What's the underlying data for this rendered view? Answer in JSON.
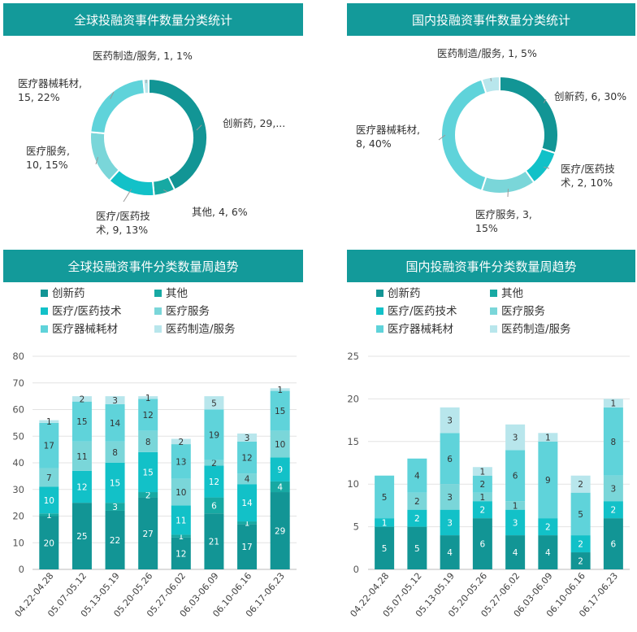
{
  "headers": {
    "global_donut": "全球投融资事件数量分类统计",
    "domestic_donut": "国内投融资事件数量分类统计",
    "global_weekly": "全球投融资事件分类数量周趋势",
    "domestic_weekly": "国内投融资事件分类数量周趋势"
  },
  "categories": [
    "创新药",
    "其他",
    "医疗/医药技术",
    "医疗服务",
    "医疗器械耗材",
    "医药制造/服务"
  ],
  "legend_labels": [
    "创新药",
    "其他",
    "医疗/医药技术",
    "医疗服务",
    "医疗器械耗材",
    "医药制造/服务"
  ],
  "colors": [
    "#129595",
    "#17a9a3",
    "#12c1c8",
    "#7ad6d9",
    "#5fd3da",
    "#b8e6ec"
  ],
  "chart_data": [
    {
      "type": "pie",
      "id": "global_donut",
      "donut": true,
      "slices": [
        {
          "label": "创新药",
          "value": 29,
          "percent": 43
        },
        {
          "label": "其他",
          "value": 4,
          "percent": 6
        },
        {
          "label": "医疗/医药技术",
          "value": 9,
          "percent": 13
        },
        {
          "label": "医疗服务",
          "value": 10,
          "percent": 15
        },
        {
          "label": "医疗器械耗材",
          "value": 15,
          "percent": 22
        },
        {
          "label": "医药制造/服务",
          "value": 1,
          "percent": 1
        }
      ],
      "slice_labels": [
        [
          "创新药, 29,..."
        ],
        [
          "其他, 4, 6%"
        ],
        [
          "医疗/医药技",
          "术, 9, 13%"
        ],
        [
          "医疗服务,",
          "10, 15%"
        ],
        [
          "医疗器械耗材,",
          "15, 22%"
        ],
        [
          "医药制造/服务, 1, 1%"
        ]
      ]
    },
    {
      "type": "pie",
      "id": "domestic_donut",
      "donut": true,
      "slices": [
        {
          "label": "创新药",
          "value": 6,
          "percent": 30
        },
        {
          "label": "医疗/医药技术",
          "value": 2,
          "percent": 10
        },
        {
          "label": "医疗服务",
          "value": 3,
          "percent": 15
        },
        {
          "label": "医疗器械耗材",
          "value": 8,
          "percent": 40
        },
        {
          "label": "医药制造/服务",
          "value": 1,
          "percent": 5
        }
      ],
      "slice_labels": [
        [
          "创新药, 6, 30%"
        ],
        [
          "医疗/医药技",
          "术, 2, 10%"
        ],
        [
          "医疗服务, 3,",
          "15%"
        ],
        [
          "医疗器械耗材,",
          "8, 40%"
        ],
        [
          "医药制造/服务, 1, 5%"
        ]
      ]
    },
    {
      "type": "bar",
      "id": "global_weekly",
      "stacked": true,
      "categories": [
        "04.22-04.28",
        "05.07-05.12",
        "05.13-05.19",
        "05.20-05.26",
        "05.27-06.02",
        "06.03-06.09",
        "06.10-06.16",
        "06.17-06.23"
      ],
      "ylim": [
        0,
        80
      ],
      "yticks": [
        0,
        10,
        20,
        30,
        40,
        50,
        60,
        70,
        80
      ],
      "series": [
        {
          "name": "创新药",
          "values": [
            20,
            25,
            22,
            27,
            12,
            21,
            17,
            29
          ]
        },
        {
          "name": "其他",
          "values": [
            1,
            0,
            3,
            2,
            1,
            6,
            1,
            4
          ]
        },
        {
          "name": "医疗/医药技术",
          "values": [
            10,
            12,
            15,
            15,
            11,
            12,
            14,
            9
          ]
        },
        {
          "name": "医疗服务",
          "values": [
            7,
            11,
            8,
            8,
            10,
            2,
            4,
            10
          ]
        },
        {
          "name": "医疗器械耗材",
          "values": [
            17,
            15,
            14,
            12,
            13,
            19,
            12,
            15
          ]
        },
        {
          "name": "医药制造/服务",
          "values": [
            1,
            2,
            3,
            1,
            2,
            5,
            3,
            1
          ]
        }
      ],
      "legend": "top",
      "grid": true
    },
    {
      "type": "bar",
      "id": "domestic_weekly",
      "stacked": true,
      "categories": [
        "04.22-04.28",
        "05.07-05.12",
        "05.13-05.19",
        "05.20-05.26",
        "05.27-06.02",
        "06.03-06.09",
        "06.10-06.16",
        "06.17-06.23"
      ],
      "ylim": [
        0,
        25
      ],
      "yticks": [
        0,
        5,
        10,
        15,
        20,
        25
      ],
      "series": [
        {
          "name": "创新药",
          "values": [
            5,
            5,
            4,
            6,
            4,
            4,
            2,
            6
          ]
        },
        {
          "name": "其他",
          "values": [
            0,
            0,
            0,
            0,
            0,
            0,
            0,
            0
          ]
        },
        {
          "name": "医疗/医药技术",
          "values": [
            1,
            2,
            3,
            2,
            3,
            2,
            2,
            2
          ]
        },
        {
          "name": "医疗服务",
          "values": [
            0,
            2,
            3,
            1,
            1,
            0,
            0,
            3
          ]
        },
        {
          "name": "医疗器械耗材",
          "values": [
            5,
            4,
            6,
            2,
            6,
            9,
            5,
            8
          ]
        },
        {
          "name": "医药制造/服务",
          "values": [
            0,
            0,
            3,
            1,
            3,
            1,
            2,
            1
          ]
        }
      ],
      "legend": "top",
      "grid": true
    }
  ]
}
